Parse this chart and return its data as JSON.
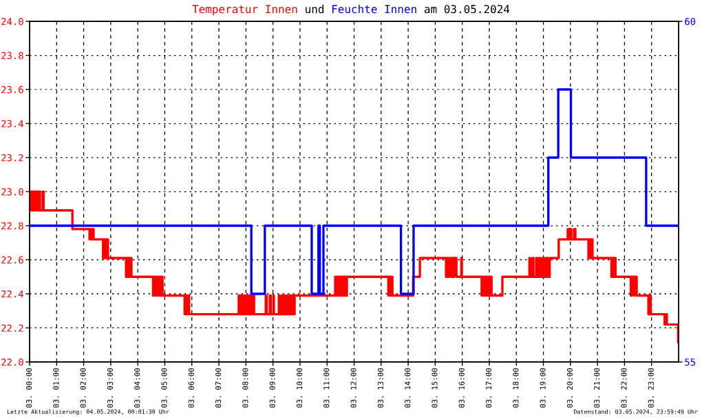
{
  "chart_data": {
    "type": "step",
    "title": "Temperatur Innen und Feuchte Innen am 03.05.2024",
    "annotations": [
      "Letzte Aktualisierung: 04.05.2024, 00:01:30 Uhr",
      "Datenstand: 03.05.2024, 23:59:49 Uhr"
    ],
    "xlim": [
      "2024-05-03T00:00",
      "2024-05-04T00:00"
    ],
    "xticks": [
      {
        "value": "2024-05-03T00:00",
        "label": "03. 00:00"
      },
      {
        "value": "2024-05-03T01:00",
        "label": "03. 01:00"
      },
      {
        "value": "2024-05-03T02:00",
        "label": "03. 02:00"
      },
      {
        "value": "2024-05-03T03:00",
        "label": "03. 03:00"
      },
      {
        "value": "2024-05-03T04:00",
        "label": "03. 04:00"
      },
      {
        "value": "2024-05-03T05:00",
        "label": "03. 05:00"
      },
      {
        "value": "2024-05-03T06:00",
        "label": "03. 06:00"
      },
      {
        "value": "2024-05-03T07:00",
        "label": "03. 07:00"
      },
      {
        "value": "2024-05-03T08:00",
        "label": "03. 08:00"
      },
      {
        "value": "2024-05-03T09:00",
        "label": "03. 09:00"
      },
      {
        "value": "2024-05-03T10:00",
        "label": "03. 10:00"
      },
      {
        "value": "2024-05-03T11:00",
        "label": "03. 11:00"
      },
      {
        "value": "2024-05-03T12:00",
        "label": "03. 12:00"
      },
      {
        "value": "2024-05-03T13:00",
        "label": "03. 13:00"
      },
      {
        "value": "2024-05-03T14:00",
        "label": "03. 14:00"
      },
      {
        "value": "2024-05-03T15:00",
        "label": "03. 15:00"
      },
      {
        "value": "2024-05-03T16:00",
        "label": "03. 16:00"
      },
      {
        "value": "2024-05-03T17:00",
        "label": "03. 17:00"
      },
      {
        "value": "2024-05-03T18:00",
        "label": "03. 18:00"
      },
      {
        "value": "2024-05-03T19:00",
        "label": "03. 19:00"
      },
      {
        "value": "2024-05-03T20:00",
        "label": "03. 20:00"
      },
      {
        "value": "2024-05-03T21:00",
        "label": "03. 21:00"
      },
      {
        "value": "2024-05-03T22:00",
        "label": "03. 22:00"
      },
      {
        "value": "2024-05-03T23:00",
        "label": "03. 23:00"
      }
    ],
    "ylim": [
      22,
      24
    ],
    "yticks": [
      {
        "value": 22,
        "label": "22.0"
      },
      22.2,
      22.4,
      22.6,
      22.8,
      {
        "value": 23,
        "label": "23.0"
      },
      23.2,
      23.4,
      23.6,
      23.8,
      {
        "value": 24,
        "label": "24.0"
      }
    ],
    "y2lim": [
      55,
      60
    ],
    "y2ticks": [
      55,
      60
    ],
    "grid": true,
    "series": [
      {
        "color": "#ff0000",
        "x": [
          "2024-05-03T00:00",
          "2024-05-03T00:02",
          "2024-05-03T00:06",
          "2024-05-03T00:08",
          "2024-05-03T00:12",
          "2024-05-03T00:14",
          "2024-05-03T00:19",
          "2024-05-03T00:20",
          "2024-05-03T00:23",
          "2024-05-03T00:29",
          "2024-05-03T00:31",
          "2024-05-03T01:35",
          "2024-05-03T02:13",
          "2024-05-03T02:14",
          "2024-05-03T02:17",
          "2024-05-03T02:19",
          "2024-05-03T02:22",
          "2024-05-03T02:43",
          "2024-05-03T02:45",
          "2024-05-03T02:48",
          "2024-05-03T02:50",
          "2024-05-03T02:54",
          "2024-05-03T03:34",
          "2024-05-03T03:35",
          "2024-05-03T03:38",
          "2024-05-03T03:40",
          "2024-05-03T03:43",
          "2024-05-03T03:44",
          "2024-05-03T03:46",
          "2024-05-03T04:34",
          "2024-05-03T04:35",
          "2024-05-03T04:38",
          "2024-05-03T04:40",
          "2024-05-03T04:43",
          "2024-05-03T04:47",
          "2024-05-03T04:50",
          "2024-05-03T04:52",
          "2024-05-03T04:55",
          "2024-05-03T05:44",
          "2024-05-03T05:45",
          "2024-05-03T05:48",
          "2024-05-03T05:50",
          "2024-05-03T05:54",
          "2024-05-03T07:44",
          "2024-05-03T07:46",
          "2024-05-03T07:49",
          "2024-05-03T07:52",
          "2024-05-03T07:55",
          "2024-05-03T07:58",
          "2024-05-03T08:01",
          "2024-05-03T08:05",
          "2024-05-03T08:08",
          "2024-05-03T08:11",
          "2024-05-03T08:15",
          "2024-05-03T08:18",
          "2024-05-03T08:44",
          "2024-05-03T08:46",
          "2024-05-03T08:53",
          "2024-05-03T08:55",
          "2024-05-03T09:01",
          "2024-05-03T09:02",
          "2024-05-03T09:13",
          "2024-05-03T09:14",
          "2024-05-03T09:19",
          "2024-05-03T09:20",
          "2024-05-03T09:23",
          "2024-05-03T09:26",
          "2024-05-03T09:29",
          "2024-05-03T09:32",
          "2024-05-03T09:37",
          "2024-05-03T09:40",
          "2024-05-03T09:42",
          "2024-05-03T09:45",
          "2024-05-03T09:48",
          "2024-05-03T11:18",
          "2024-05-03T11:20",
          "2024-05-03T11:23",
          "2024-05-03T11:26",
          "2024-05-03T11:29",
          "2024-05-03T11:32",
          "2024-05-03T11:35",
          "2024-05-03T11:38",
          "2024-05-03T11:40",
          "2024-05-03T11:41",
          "2024-05-03T11:44",
          "2024-05-03T13:16",
          "2024-05-03T13:17",
          "2024-05-03T13:20",
          "2024-05-03T13:23",
          "2024-05-03T13:25",
          "2024-05-03T14:11",
          "2024-05-03T14:26",
          "2024-05-03T15:24",
          "2024-05-03T15:25",
          "2024-05-03T15:28",
          "2024-05-03T15:31",
          "2024-05-03T15:35",
          "2024-05-03T15:38",
          "2024-05-03T15:41",
          "2024-05-03T15:42",
          "2024-05-03T15:47",
          "2024-05-03T15:58",
          "2024-05-03T15:59",
          "2024-05-03T16:43",
          "2024-05-03T16:45",
          "2024-05-03T16:48",
          "2024-05-03T16:51",
          "2024-05-03T16:54",
          "2024-05-03T16:57",
          "2024-05-03T17:00",
          "2024-05-03T17:03",
          "2024-05-03T17:05",
          "2024-05-03T17:29",
          "2024-05-03T18:29",
          "2024-05-03T18:30",
          "2024-05-03T18:35",
          "2024-05-03T18:38",
          "2024-05-03T18:44",
          "2024-05-03T18:46",
          "2024-05-03T18:50",
          "2024-05-03T18:53",
          "2024-05-03T18:58",
          "2024-05-03T19:01",
          "2024-05-03T19:04",
          "2024-05-03T19:05",
          "2024-05-03T19:08",
          "2024-05-03T19:10",
          "2024-05-03T19:14",
          "2024-05-03T19:34",
          "2024-05-03T19:54",
          "2024-05-03T19:57",
          "2024-05-03T20:01",
          "2024-05-03T20:02",
          "2024-05-03T20:08",
          "2024-05-03T20:11",
          "2024-05-03T20:40",
          "2024-05-03T20:41",
          "2024-05-03T20:44",
          "2024-05-03T20:46",
          "2024-05-03T20:49",
          "2024-05-03T21:31",
          "2024-05-03T21:32",
          "2024-05-03T21:35",
          "2024-05-03T21:37",
          "2024-05-03T21:40",
          "2024-05-03T22:14",
          "2024-05-03T22:16",
          "2024-05-03T22:21",
          "2024-05-03T22:22",
          "2024-05-03T22:27",
          "2024-05-03T22:53",
          "2024-05-03T22:55",
          "2024-05-03T22:58",
          "2024-05-03T23:29",
          "2024-05-03T23:31",
          "2024-05-03T23:34",
          "2024-05-03T23:59"
        ],
        "values": [
          22.89,
          23.0,
          22.89,
          23.0,
          22.89,
          23.0,
          22.89,
          23.0,
          22.89,
          23.0,
          22.89,
          22.78,
          22.72,
          22.78,
          22.72,
          22.78,
          22.72,
          22.61,
          22.72,
          22.61,
          22.72,
          22.61,
          22.5,
          22.61,
          22.5,
          22.61,
          22.5,
          22.61,
          22.5,
          22.39,
          22.5,
          22.39,
          22.5,
          22.39,
          22.5,
          22.39,
          22.5,
          22.39,
          22.28,
          22.39,
          22.28,
          22.39,
          22.28,
          22.39,
          22.28,
          22.39,
          22.28,
          22.39,
          22.28,
          22.39,
          22.28,
          22.39,
          22.28,
          22.39,
          22.28,
          22.39,
          22.28,
          22.39,
          22.28,
          22.39,
          22.28,
          22.39,
          22.28,
          22.39,
          22.28,
          22.39,
          22.28,
          22.39,
          22.28,
          22.39,
          22.28,
          22.39,
          22.28,
          22.39,
          22.5,
          22.39,
          22.5,
          22.39,
          22.5,
          22.39,
          22.5,
          22.39,
          22.5,
          22.39,
          22.5,
          22.39,
          22.5,
          22.39,
          22.5,
          22.39,
          22.5,
          22.61,
          22.5,
          22.61,
          22.5,
          22.61,
          22.5,
          22.61,
          22.5,
          22.61,
          22.5,
          22.61,
          22.5,
          22.39,
          22.5,
          22.39,
          22.5,
          22.39,
          22.5,
          22.39,
          22.5,
          22.39,
          22.5,
          22.61,
          22.5,
          22.61,
          22.5,
          22.61,
          22.5,
          22.61,
          22.5,
          22.61,
          22.5,
          22.61,
          22.5,
          22.61,
          22.5,
          22.61,
          22.72,
          22.78,
          22.72,
          22.78,
          22.72,
          22.78,
          22.72,
          22.61,
          22.72,
          22.61,
          22.72,
          22.61,
          22.5,
          22.61,
          22.5,
          22.61,
          22.5,
          22.39,
          22.5,
          22.39,
          22.5,
          22.39,
          22.28,
          22.39,
          22.28,
          22.22,
          22.28,
          22.22,
          22.11
        ]
      },
      {
        "color": "#0000ff",
        "axis": "y2",
        "x": [
          "2024-05-03T00:00",
          "2024-05-03T08:12",
          "2024-05-03T08:42",
          "2024-05-03T10:26",
          "2024-05-03T10:41",
          "2024-05-03T10:44",
          "2024-05-03T10:52",
          "2024-05-03T13:44",
          "2024-05-03T14:12",
          "2024-05-03T19:11",
          "2024-05-03T19:33",
          "2024-05-03T20:01",
          "2024-05-03T22:48",
          "2024-05-03T23:59"
        ],
        "values": [
          57,
          56,
          57,
          56,
          57,
          56,
          57,
          56,
          57,
          58,
          59,
          58,
          57,
          57
        ]
      }
    ]
  }
}
